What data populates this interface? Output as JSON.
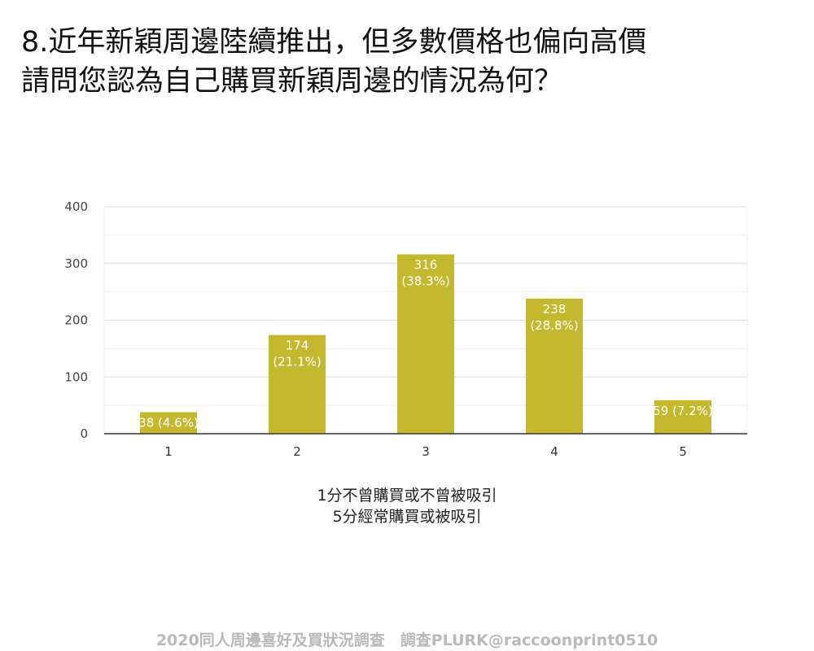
{
  "title": {
    "line1": "8.近年新穎周邊陸續推出，但多數價格也偏向高價",
    "line2": "請問您認為自己購買新穎周邊的情況為何？"
  },
  "caption": {
    "line1": "1分不曾購買或不曾被吸引",
    "line2": "5分經常購買或被吸引"
  },
  "footer": "2020同人周邊喜好及買狀況調查　調查PLURK@raccoonprint0510",
  "chart_data": {
    "type": "bar",
    "categories": [
      "1",
      "2",
      "3",
      "4",
      "5"
    ],
    "values": [
      38,
      174,
      316,
      238,
      59
    ],
    "data_labels": [
      [
        "38 (4.6%)"
      ],
      [
        "174",
        "(21.1%)"
      ],
      [
        "316",
        "(38.3%)"
      ],
      [
        "238",
        "(28.8%)"
      ],
      [
        "59 (7.2%)"
      ]
    ],
    "y_ticks": [
      0,
      100,
      200,
      300,
      400
    ],
    "ylim": [
      0,
      400
    ],
    "grid": true,
    "bar_color": "#c3b82e",
    "label_color": "#ffffff"
  }
}
